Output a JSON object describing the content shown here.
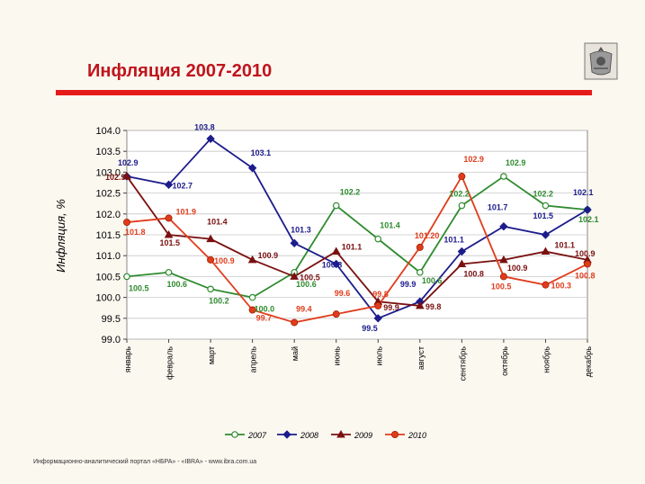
{
  "page": {
    "title": "Инфляция 2007-2010",
    "footer": "Информационно-аналитический   портал «НБРА» - «IBRA» - www.ibra.com.ua"
  },
  "chart_data": {
    "type": "line",
    "ylabel": "Инфляция, %",
    "ylim": [
      99.0,
      104.0
    ],
    "y_ticks": [
      "99.0",
      "99.5",
      "100.0",
      "100.5",
      "101.0",
      "101.5",
      "102.0",
      "102.5",
      "103.0",
      "103.5",
      "104.0"
    ],
    "categories": [
      "январь",
      "февраль",
      "март",
      "апрель",
      "май",
      "июнь",
      "июль",
      "август",
      "сентябрь",
      "октябрь",
      "ноябрь",
      "декабрь"
    ],
    "legend_position": "bottom",
    "series": [
      {
        "name": "2007",
        "color": "#2e8b2e",
        "marker": "circle-open",
        "values": [
          100.5,
          100.6,
          100.2,
          100.0,
          100.6,
          102.2,
          101.4,
          100.6,
          102.2,
          102.9,
          102.2,
          102.1
        ]
      },
      {
        "name": "2008",
        "color": "#1c1c8c",
        "marker": "diamond",
        "values": [
          102.9,
          102.7,
          103.8,
          103.1,
          101.3,
          100.8,
          99.5,
          99.9,
          101.1,
          101.7,
          101.5,
          102.1
        ]
      },
      {
        "name": "2009",
        "color": "#7a1010",
        "marker": "triangle",
        "values": [
          102.9,
          101.5,
          101.4,
          100.9,
          100.5,
          101.1,
          99.9,
          99.8,
          100.8,
          100.9,
          101.1,
          100.9
        ]
      },
      {
        "name": "2010",
        "color": "#e03c1c",
        "marker": "circle",
        "values": [
          101.8,
          101.9,
          100.9,
          99.7,
          99.4,
          99.6,
          99.8,
          101.2,
          102.9,
          100.5,
          100.3,
          100.8
        ]
      }
    ],
    "data_labels": [
      {
        "series": 0,
        "text": "100.5",
        "i": 0
      },
      {
        "series": 0,
        "text": "100.6",
        "i": 1
      },
      {
        "series": 0,
        "text": "100.2",
        "i": 2
      },
      {
        "series": 0,
        "text": "100.0",
        "i": 3
      },
      {
        "series": 0,
        "text": "100.6",
        "i": 4
      },
      {
        "series": 0,
        "text": "102.2",
        "i": 5
      },
      {
        "series": 0,
        "text": "101.4",
        "i": 6
      },
      {
        "series": 0,
        "text": "100.6",
        "i": 7
      },
      {
        "series": 0,
        "text": "102.2",
        "i": 8
      },
      {
        "series": 0,
        "text": "102.9",
        "i": 9
      },
      {
        "series": 0,
        "text": "102.2",
        "i": 10
      },
      {
        "series": 0,
        "text": "102.1",
        "i": 11
      },
      {
        "series": 1,
        "text": "102.9",
        "i": 0
      },
      {
        "series": 1,
        "text": "102.7",
        "i": 1
      },
      {
        "series": 1,
        "text": "103.8",
        "i": 2
      },
      {
        "series": 1,
        "text": "103.1",
        "i": 3
      },
      {
        "series": 1,
        "text": "101.3",
        "i": 4
      },
      {
        "series": 1,
        "text": "100.8",
        "i": 5
      },
      {
        "series": 1,
        "text": "99.5",
        "i": 6
      },
      {
        "series": 1,
        "text": "99.9",
        "i": 7
      },
      {
        "series": 1,
        "text": "101.1",
        "i": 8
      },
      {
        "series": 1,
        "text": "101.7",
        "i": 9
      },
      {
        "series": 1,
        "text": "101.5",
        "i": 10
      },
      {
        "series": 1,
        "text": "102.1",
        "i": 11
      },
      {
        "series": 2,
        "text": "102.9",
        "i": 0
      },
      {
        "series": 2,
        "text": "101.5",
        "i": 1
      },
      {
        "series": 2,
        "text": "101.4",
        "i": 2
      },
      {
        "series": 2,
        "text": "100.9",
        "i": 3
      },
      {
        "series": 2,
        "text": "100.5",
        "i": 4
      },
      {
        "series": 2,
        "text": "101.1",
        "i": 5
      },
      {
        "series": 2,
        "text": "99.9",
        "i": 6
      },
      {
        "series": 2,
        "text": "99.8",
        "i": 7
      },
      {
        "series": 2,
        "text": "100.8",
        "i": 8
      },
      {
        "series": 2,
        "text": "100.9",
        "i": 9
      },
      {
        "series": 2,
        "text": "101.1",
        "i": 10
      },
      {
        "series": 2,
        "text": "100.9",
        "i": 11
      },
      {
        "series": 3,
        "text": "101.8",
        "i": 0
      },
      {
        "series": 3,
        "text": "101.9",
        "i": 1
      },
      {
        "series": 3,
        "text": "100.9",
        "i": 2
      },
      {
        "series": 3,
        "text": "99.7",
        "i": 3
      },
      {
        "series": 3,
        "text": "99.4",
        "i": 4
      },
      {
        "series": 3,
        "text": "99.6",
        "i": 5
      },
      {
        "series": 3,
        "text": "99.8",
        "i": 6
      },
      {
        "series": 3,
        "text": "101.20",
        "i": 7
      },
      {
        "series": 3,
        "text": "102.9",
        "i": 8
      },
      {
        "series": 3,
        "text": "100.5",
        "i": 9
      },
      {
        "series": 3,
        "text": "100.3",
        "i": 10
      },
      {
        "series": 3,
        "text": "100.8",
        "i": 11
      }
    ]
  }
}
